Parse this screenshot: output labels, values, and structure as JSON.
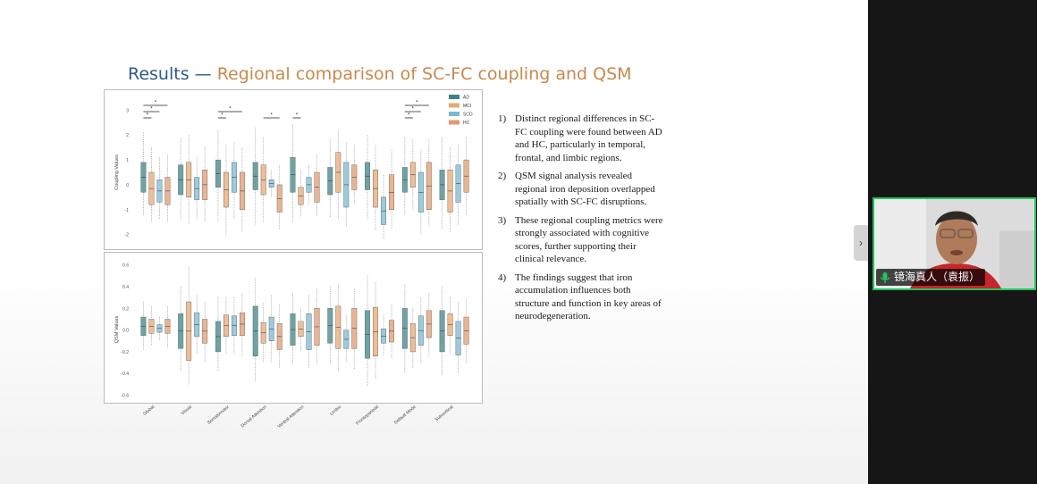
{
  "slide": {
    "title_part1": "Results",
    "title_dash": "—",
    "title_part2": "Regional comparison of SC-FC coupling and QSM",
    "points": [
      {
        "num": "1)",
        "text": "Distinct regional differences in SC-FC coupling were found between AD and HC, particularly in temporal, frontal, and limbic regions."
      },
      {
        "num": "2)",
        "text": "QSM signal analysis revealed regional iron deposition overlapped spatially with SC-FC disruptions."
      },
      {
        "num": "3)",
        "text": "These regional coupling metrics were strongly associated with cognitive scores, further supporting their clinical relevance."
      },
      {
        "num": "4)",
        "text": "The findings suggest that iron accumulation influences both structure and function in key areas of neurodegeneration."
      }
    ]
  },
  "video": {
    "participant_name": "镜海真人（袁振）",
    "mic_icon": "mic-icon"
  },
  "chart_data": [
    {
      "type": "box",
      "ylabel": "Coupling Values",
      "ylim": [
        -2.3,
        3.3
      ],
      "yticks": [
        "3",
        "2",
        "1",
        "0",
        "-1",
        "-2"
      ],
      "legend": {
        "position": "top-right",
        "entries": [
          {
            "name": "AD",
            "color": "#3d8485"
          },
          {
            "name": "MCI",
            "color": "#e8a872"
          },
          {
            "name": "SCD",
            "color": "#79b9d1"
          },
          {
            "name": "HC",
            "color": "#e39b6e"
          }
        ]
      },
      "significance_marker": "*",
      "significant_comparisons": [
        [
          0,
          0,
          1
        ],
        [
          0,
          0,
          2
        ],
        [
          0,
          0,
          3
        ],
        [
          2,
          0,
          1
        ],
        [
          2,
          0,
          3
        ],
        [
          3,
          1,
          3
        ],
        [
          4,
          0,
          1
        ],
        [
          7,
          0,
          1
        ],
        [
          7,
          0,
          2
        ],
        [
          7,
          0,
          3
        ]
      ],
      "categories": [
        "Global",
        "Visual",
        "Somatomotor",
        "Dorsal Attention",
        "Ventral Attention",
        "Limbic",
        "Frontoparietal",
        "Default Mode",
        "Subcortical"
      ],
      "series": [
        {
          "name": "AD",
          "boxes": [
            [
              -0.3,
              0.9,
              -1.2,
              2.1
            ],
            [
              -0.4,
              0.8,
              -1.4,
              1.9
            ],
            [
              -0.1,
              1.0,
              -1.5,
              2.2
            ],
            [
              -0.2,
              0.9,
              -1.6,
              2.3
            ],
            [
              -0.3,
              1.1,
              -1.5,
              2.4
            ],
            [
              -0.4,
              0.7,
              -1.3,
              1.8
            ],
            [
              -0.2,
              0.9,
              -1.4,
              2.0
            ],
            [
              -0.3,
              0.7,
              -1.2,
              1.9
            ],
            [
              -0.6,
              0.6,
              -1.8,
              1.9
            ]
          ]
        },
        {
          "name": "MCI",
          "boxes": [
            [
              -0.8,
              0.5,
              -1.5,
              1.5
            ],
            [
              -0.5,
              0.9,
              -1.6,
              2.0
            ],
            [
              -0.9,
              0.5,
              -2.1,
              1.6
            ],
            [
              -0.4,
              0.8,
              -1.5,
              1.9
            ],
            [
              -0.8,
              -0.1,
              -1.3,
              0.6
            ],
            [
              -0.3,
              1.3,
              -1.4,
              2.2
            ],
            [
              -0.9,
              0.6,
              -1.8,
              1.6
            ],
            [
              -0.1,
              0.9,
              -1.0,
              1.8
            ],
            [
              -1.1,
              0.6,
              -1.9,
              1.5
            ]
          ]
        },
        {
          "name": "SCD",
          "boxes": [
            [
              -0.7,
              0.2,
              -1.4,
              1.1
            ],
            [
              -0.6,
              0.3,
              -1.4,
              1.1
            ],
            [
              -0.3,
              0.9,
              -1.4,
              1.7
            ],
            [
              -0.1,
              0.2,
              -0.5,
              0.6
            ],
            [
              -0.3,
              0.3,
              -0.8,
              0.8
            ],
            [
              -0.9,
              0.9,
              -1.7,
              1.7
            ],
            [
              -1.6,
              -0.5,
              -2.2,
              0.4
            ],
            [
              -1.1,
              0.5,
              -2.0,
              1.4
            ],
            [
              -0.7,
              0.8,
              -1.6,
              1.6
            ]
          ]
        },
        {
          "name": "HC",
          "boxes": [
            [
              -0.8,
              0.3,
              -1.5,
              1.2
            ],
            [
              -0.6,
              0.6,
              -1.5,
              1.5
            ],
            [
              -1.0,
              0.5,
              -1.9,
              1.5
            ],
            [
              -1.1,
              0.0,
              -1.8,
              0.8
            ],
            [
              -0.7,
              0.5,
              -1.3,
              1.2
            ],
            [
              -0.2,
              0.8,
              -0.8,
              1.6
            ],
            [
              -1.0,
              0.4,
              -1.8,
              1.4
            ],
            [
              -1.0,
              0.9,
              -1.7,
              1.8
            ],
            [
              -0.3,
              1.0,
              -1.2,
              1.9
            ]
          ]
        }
      ]
    },
    {
      "type": "box",
      "ylabel": "QSM Values",
      "ylim": [
        -0.62,
        0.63
      ],
      "yticks": [
        "0.6",
        "0.4",
        "0.2",
        "0.0",
        "-0.2",
        "-0.4",
        "-0.6"
      ],
      "categories": [
        "Global",
        "Visual",
        "Somatomotor",
        "Dorsal Attention",
        "Ventral Attention",
        "Limbic",
        "Frontoparietal",
        "Default Mode",
        "Subcortical"
      ],
      "series": [
        {
          "name": "AD",
          "boxes": [
            [
              -0.05,
              0.12,
              -0.18,
              0.26
            ],
            [
              -0.17,
              0.15,
              -0.38,
              0.4
            ],
            [
              -0.2,
              0.08,
              -0.38,
              0.3
            ],
            [
              -0.24,
              0.22,
              -0.48,
              0.48
            ],
            [
              -0.14,
              0.15,
              -0.32,
              0.34
            ],
            [
              -0.12,
              0.2,
              -0.32,
              0.4
            ],
            [
              -0.26,
              0.18,
              -0.52,
              0.5
            ],
            [
              -0.17,
              0.2,
              -0.4,
              0.42
            ],
            [
              -0.2,
              0.18,
              -0.42,
              0.4
            ]
          ]
        },
        {
          "name": "MCI",
          "boxes": [
            [
              -0.03,
              0.1,
              -0.14,
              0.22
            ],
            [
              -0.28,
              0.26,
              -0.5,
              0.58
            ],
            [
              -0.06,
              0.14,
              -0.22,
              0.3
            ],
            [
              -0.12,
              0.07,
              -0.3,
              0.25
            ],
            [
              -0.06,
              0.08,
              -0.2,
              0.2
            ],
            [
              -0.17,
              0.22,
              -0.38,
              0.42
            ],
            [
              -0.24,
              0.21,
              -0.45,
              0.44
            ],
            [
              -0.2,
              0.06,
              -0.35,
              0.2
            ],
            [
              -0.05,
              0.15,
              -0.22,
              0.3
            ]
          ]
        },
        {
          "name": "SCD",
          "boxes": [
            [
              -0.02,
              0.05,
              -0.1,
              0.12
            ],
            [
              -0.06,
              0.16,
              -0.22,
              0.32
            ],
            [
              -0.05,
              0.13,
              -0.22,
              0.3
            ],
            [
              -0.1,
              0.12,
              -0.3,
              0.32
            ],
            [
              -0.18,
              0.15,
              -0.36,
              0.32
            ],
            [
              -0.17,
              0.0,
              -0.3,
              0.14
            ],
            [
              -0.12,
              0.01,
              -0.24,
              0.14
            ],
            [
              -0.14,
              0.13,
              -0.32,
              0.3
            ],
            [
              -0.23,
              0.08,
              -0.4,
              0.26
            ]
          ]
        },
        {
          "name": "HC",
          "boxes": [
            [
              -0.03,
              0.1,
              -0.16,
              0.22
            ],
            [
              -0.12,
              0.1,
              -0.3,
              0.26
            ],
            [
              -0.05,
              0.16,
              -0.24,
              0.34
            ],
            [
              -0.18,
              0.06,
              -0.36,
              0.24
            ],
            [
              -0.14,
              0.2,
              -0.32,
              0.38
            ],
            [
              -0.17,
              0.2,
              -0.36,
              0.38
            ],
            [
              -0.11,
              0.09,
              -0.26,
              0.24
            ],
            [
              -0.07,
              0.18,
              -0.25,
              0.34
            ],
            [
              -0.13,
              0.12,
              -0.3,
              0.28
            ]
          ]
        }
      ]
    }
  ]
}
